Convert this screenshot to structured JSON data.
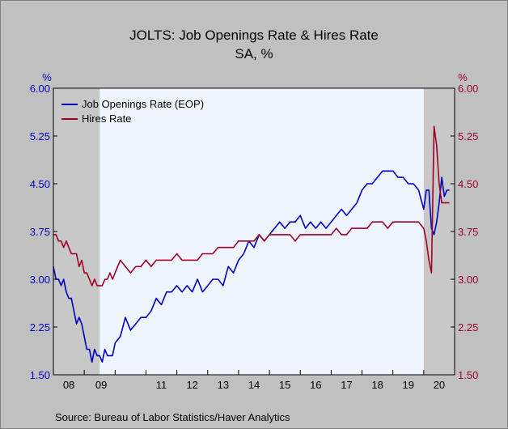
{
  "chart_data": {
    "type": "line",
    "title": "JOLTS: Job Openings Rate & Hires Rate",
    "subtitle": "SA, %",
    "left_axis_unit": "%",
    "right_axis_unit": "%",
    "source": "Source:  Bureau of Labor Statistics/Haver Analytics",
    "ylim": [
      1.5,
      6.0
    ],
    "y_ticks": [
      "6.00",
      "5.25",
      "4.50",
      "3.75",
      "3.00",
      "2.25",
      "1.50"
    ],
    "x_start": 2008.0,
    "x_end": 2021.0,
    "x_tick_labels": [
      "08",
      "09",
      "11",
      "12",
      "13",
      "14",
      "15",
      "16",
      "17",
      "18",
      "19",
      "20"
    ],
    "recessions": [
      [
        2008.0,
        2009.5
      ],
      [
        2020.0,
        2021.0
      ]
    ],
    "legend_position": "top-left",
    "series": [
      {
        "name": "Job Openings Rate (EOP)",
        "color": "#0000c0",
        "axis": "left",
        "x": [
          2008.0,
          2008.083,
          2008.167,
          2008.25,
          2008.333,
          2008.417,
          2008.5,
          2008.583,
          2008.667,
          2008.75,
          2008.833,
          2008.917,
          2009.0,
          2009.083,
          2009.167,
          2009.25,
          2009.333,
          2009.417,
          2009.5,
          2009.583,
          2009.667,
          2009.75,
          2009.833,
          2009.917,
          2010.0,
          2010.167,
          2010.333,
          2010.5,
          2010.667,
          2010.833,
          2011.0,
          2011.167,
          2011.333,
          2011.5,
          2011.667,
          2011.833,
          2012.0,
          2012.167,
          2012.333,
          2012.5,
          2012.667,
          2012.833,
          2013.0,
          2013.167,
          2013.333,
          2013.5,
          2013.667,
          2013.833,
          2014.0,
          2014.167,
          2014.333,
          2014.5,
          2014.667,
          2014.833,
          2015.0,
          2015.167,
          2015.333,
          2015.5,
          2015.667,
          2015.833,
          2016.0,
          2016.167,
          2016.333,
          2016.5,
          2016.667,
          2016.833,
          2017.0,
          2017.167,
          2017.333,
          2017.5,
          2017.667,
          2017.833,
          2018.0,
          2018.167,
          2018.333,
          2018.5,
          2018.667,
          2018.833,
          2019.0,
          2019.167,
          2019.333,
          2019.5,
          2019.667,
          2019.833,
          2020.0,
          2020.083,
          2020.167,
          2020.25,
          2020.333,
          2020.417,
          2020.5,
          2020.583,
          2020.667,
          2020.75,
          2020.833
        ],
        "values": [
          3.2,
          3.0,
          3.0,
          2.9,
          3.0,
          2.8,
          2.7,
          2.7,
          2.5,
          2.3,
          2.4,
          2.3,
          2.1,
          1.9,
          1.9,
          1.7,
          1.9,
          1.8,
          1.8,
          1.7,
          1.9,
          1.8,
          1.8,
          1.8,
          2.0,
          2.1,
          2.4,
          2.2,
          2.3,
          2.4,
          2.4,
          2.5,
          2.7,
          2.6,
          2.8,
          2.8,
          2.9,
          2.8,
          2.9,
          2.8,
          3.0,
          2.8,
          2.9,
          3.0,
          3.0,
          2.9,
          3.2,
          3.1,
          3.3,
          3.4,
          3.6,
          3.5,
          3.7,
          3.6,
          3.7,
          3.8,
          3.9,
          3.8,
          3.9,
          3.9,
          4.0,
          3.8,
          3.9,
          3.8,
          3.9,
          3.8,
          3.9,
          4.0,
          4.1,
          4.0,
          4.1,
          4.2,
          4.4,
          4.5,
          4.5,
          4.6,
          4.7,
          4.7,
          4.7,
          4.6,
          4.6,
          4.5,
          4.5,
          4.4,
          4.1,
          4.4,
          4.4,
          3.8,
          3.7,
          3.9,
          4.2,
          4.6,
          4.3,
          4.4,
          4.4
        ]
      },
      {
        "name": "Hires Rate",
        "color": "#a00028",
        "axis": "right",
        "x": [
          2008.0,
          2008.083,
          2008.167,
          2008.25,
          2008.333,
          2008.417,
          2008.5,
          2008.583,
          2008.667,
          2008.75,
          2008.833,
          2008.917,
          2009.0,
          2009.083,
          2009.167,
          2009.25,
          2009.333,
          2009.417,
          2009.5,
          2009.583,
          2009.667,
          2009.75,
          2009.833,
          2009.917,
          2010.0,
          2010.167,
          2010.333,
          2010.5,
          2010.667,
          2010.833,
          2011.0,
          2011.167,
          2011.333,
          2011.5,
          2011.667,
          2011.833,
          2012.0,
          2012.167,
          2012.333,
          2012.5,
          2012.667,
          2012.833,
          2013.0,
          2013.167,
          2013.333,
          2013.5,
          2013.667,
          2013.833,
          2014.0,
          2014.167,
          2014.333,
          2014.5,
          2014.667,
          2014.833,
          2015.0,
          2015.167,
          2015.333,
          2015.5,
          2015.667,
          2015.833,
          2016.0,
          2016.167,
          2016.333,
          2016.5,
          2016.667,
          2016.833,
          2017.0,
          2017.167,
          2017.333,
          2017.5,
          2017.667,
          2017.833,
          2018.0,
          2018.167,
          2018.333,
          2018.5,
          2018.667,
          2018.833,
          2019.0,
          2019.167,
          2019.333,
          2019.5,
          2019.667,
          2019.833,
          2020.0,
          2020.083,
          2020.167,
          2020.25,
          2020.333,
          2020.417,
          2020.5,
          2020.583,
          2020.667,
          2020.75,
          2020.833
        ],
        "values": [
          3.7,
          3.7,
          3.6,
          3.6,
          3.5,
          3.6,
          3.5,
          3.4,
          3.4,
          3.4,
          3.2,
          3.3,
          3.1,
          3.1,
          3.0,
          2.9,
          3.0,
          2.9,
          2.9,
          2.9,
          3.0,
          3.0,
          3.1,
          3.0,
          3.1,
          3.3,
          3.2,
          3.1,
          3.2,
          3.2,
          3.3,
          3.2,
          3.3,
          3.3,
          3.3,
          3.3,
          3.4,
          3.3,
          3.3,
          3.3,
          3.3,
          3.4,
          3.4,
          3.4,
          3.5,
          3.5,
          3.5,
          3.5,
          3.6,
          3.6,
          3.6,
          3.6,
          3.7,
          3.6,
          3.7,
          3.7,
          3.7,
          3.7,
          3.7,
          3.6,
          3.7,
          3.7,
          3.7,
          3.7,
          3.7,
          3.7,
          3.7,
          3.8,
          3.7,
          3.7,
          3.8,
          3.8,
          3.8,
          3.8,
          3.9,
          3.9,
          3.9,
          3.8,
          3.9,
          3.9,
          3.9,
          3.9,
          3.9,
          3.9,
          3.8,
          3.6,
          3.3,
          3.1,
          5.4,
          5.1,
          4.5,
          4.2,
          4.2,
          4.2,
          4.2
        ]
      }
    ]
  }
}
